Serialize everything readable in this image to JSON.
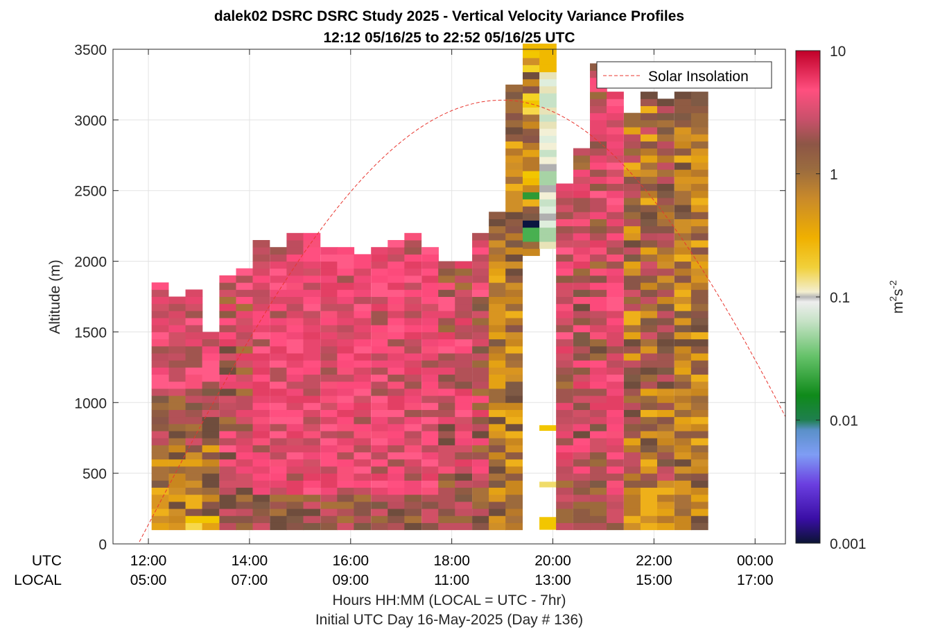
{
  "chart_data": {
    "type": "heatmap",
    "title": "dalek02 DSRC DSRC Study 2025 - Vertical Velocity Variance Profiles",
    "subtitle": "12:12 05/16/25 to 22:52 05/16/25  UTC",
    "ylabel": "Altitude (m)",
    "xlabel": "Hours HH:MM  (LOCAL = UTC - 7hr)",
    "xlabel2": "Initial UTC Day 16-May-2025 (Day # 136)",
    "row_labels": {
      "utc": "UTC",
      "local": "LOCAL"
    },
    "colorbar_label": "m^2 s^-2",
    "colorbar_label_parts": {
      "unit": "m",
      "exp1": "2",
      "unit2": "s",
      "exp2": "-2"
    },
    "xlim_hours": [
      11.3,
      24.6
    ],
    "ylim": [
      0,
      3500
    ],
    "y_ticks": [
      0,
      500,
      1000,
      1500,
      2000,
      2500,
      3000,
      3500
    ],
    "x_ticks": [
      {
        "hour": 12,
        "utc": "12:00",
        "local": "05:00"
      },
      {
        "hour": 14,
        "utc": "14:00",
        "local": "07:00"
      },
      {
        "hour": 16,
        "utc": "16:00",
        "local": "09:00"
      },
      {
        "hour": 18,
        "utc": "18:00",
        "local": "11:00"
      },
      {
        "hour": 20,
        "utc": "20:00",
        "local": "13:00"
      },
      {
        "hour": 22,
        "utc": "22:00",
        "local": "15:00"
      },
      {
        "hour": 24,
        "utc": "00:00",
        "local": "17:00"
      }
    ],
    "colorbar": {
      "scale": "log",
      "range": [
        0.001,
        10
      ],
      "ticks": [
        {
          "value": 10,
          "label": "10"
        },
        {
          "value": 1,
          "label": "1"
        },
        {
          "value": 0.1,
          "label": "0.1"
        },
        {
          "value": 0.01,
          "label": "0.01"
        },
        {
          "value": 0.001,
          "label": "0.001"
        }
      ]
    },
    "legend": {
      "entries": [
        {
          "name": "Solar Insolation",
          "color": "#e8352e",
          "style": "dashed"
        }
      ],
      "placement": "top-right"
    },
    "grid": true,
    "solar_insolation": {
      "start_hour": 11.8,
      "peak_hour": 19.0,
      "peak_altitude": 3140,
      "end_altitude_at_xmax": 900
    },
    "columns": [
      {
        "hour": 12.23,
        "top": 1800,
        "profile": "morning"
      },
      {
        "hour": 12.57,
        "top": 1700,
        "profile": "morning"
      },
      {
        "hour": 12.9,
        "top": 1780,
        "profile": "morning"
      },
      {
        "hour": 13.23,
        "top": 1490,
        "profile": "morning"
      },
      {
        "hour": 13.57,
        "top": 1890,
        "profile": "mix"
      },
      {
        "hour": 13.9,
        "top": 1940,
        "profile": "mix"
      },
      {
        "hour": 14.23,
        "top": 2140,
        "profile": "pink"
      },
      {
        "hour": 14.57,
        "top": 2090,
        "profile": "pink"
      },
      {
        "hour": 14.9,
        "top": 2190,
        "profile": "pink"
      },
      {
        "hour": 15.23,
        "top": 2190,
        "profile": "pink"
      },
      {
        "hour": 15.57,
        "top": 2090,
        "profile": "pink"
      },
      {
        "hour": 15.9,
        "top": 2090,
        "profile": "pink"
      },
      {
        "hour": 16.23,
        "top": 2040,
        "profile": "pink"
      },
      {
        "hour": 16.57,
        "top": 2090,
        "profile": "pink"
      },
      {
        "hour": 16.9,
        "top": 2140,
        "profile": "pink"
      },
      {
        "hour": 17.23,
        "top": 2190,
        "profile": "pink"
      },
      {
        "hour": 17.57,
        "top": 2090,
        "profile": "pink"
      },
      {
        "hour": 17.9,
        "top": 1990,
        "profile": "mix"
      },
      {
        "hour": 18.23,
        "top": 1990,
        "profile": "mix"
      },
      {
        "hour": 18.57,
        "top": 2190,
        "profile": "mix"
      },
      {
        "hour": 18.9,
        "top": 2340,
        "profile": "orange"
      },
      {
        "hour": 19.23,
        "top": 3240,
        "profile": "orange"
      },
      {
        "hour": 19.57,
        "top": 3490,
        "profile": "gap"
      },
      {
        "hour": 19.9,
        "top": 3490,
        "profile": "gap2"
      },
      {
        "hour": 20.23,
        "top": 2540,
        "profile": "mix"
      },
      {
        "hour": 20.57,
        "top": 2790,
        "profile": "mix"
      },
      {
        "hour": 20.9,
        "top": 3390,
        "profile": "mix"
      },
      {
        "hour": 21.23,
        "top": 3190,
        "profile": "pink"
      },
      {
        "hour": 21.57,
        "top": 3040,
        "profile": "brown"
      },
      {
        "hour": 21.9,
        "top": 3190,
        "profile": "brown"
      },
      {
        "hour": 22.23,
        "top": 3140,
        "profile": "brown"
      },
      {
        "hour": 22.57,
        "top": 3190,
        "profile": "orange"
      },
      {
        "hour": 22.9,
        "top": 3190,
        "profile": "orange"
      }
    ]
  }
}
